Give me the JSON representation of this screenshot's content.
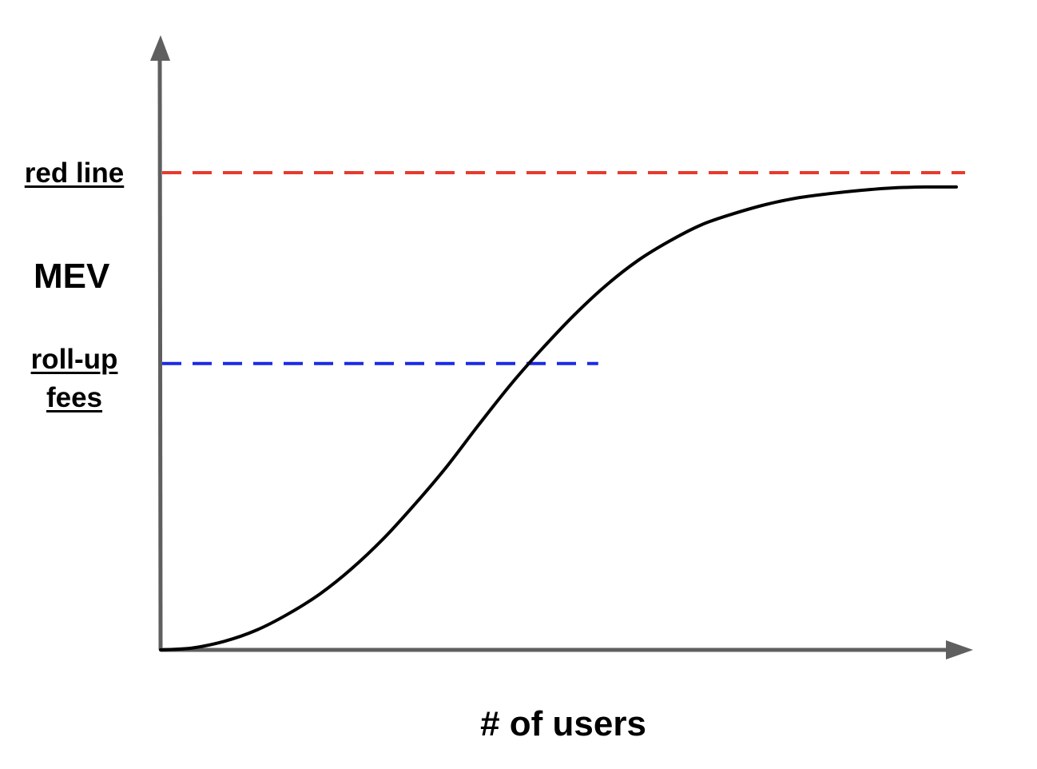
{
  "chart_data": {
    "type": "line",
    "xlabel": "# of users",
    "ylabel": "MEV",
    "xlim": [
      0,
      1
    ],
    "ylim": [
      0,
      1
    ],
    "grid": false,
    "series": [
      {
        "color": "#000000",
        "x": [
          0.0,
          0.04,
          0.08,
          0.12,
          0.16,
          0.2,
          0.24,
          0.28,
          0.32,
          0.36,
          0.4,
          0.44,
          0.48,
          0.52,
          0.56,
          0.6,
          0.64,
          0.68,
          0.72,
          0.76,
          0.8,
          0.84,
          0.88,
          0.92,
          0.96,
          1.0
        ],
        "values": [
          0.0,
          0.004,
          0.018,
          0.041,
          0.075,
          0.117,
          0.17,
          0.233,
          0.306,
          0.385,
          0.472,
          0.556,
          0.632,
          0.702,
          0.764,
          0.816,
          0.857,
          0.891,
          0.914,
          0.933,
          0.947,
          0.956,
          0.963,
          0.968,
          0.97,
          0.97
        ]
      }
    ],
    "reference_lines": [
      {
        "label": "red line",
        "y": 1.0,
        "style": "dashed",
        "color": "#e63b2e",
        "x_end": 1.0
      },
      {
        "label_lines": [
          "roll-up",
          "fees"
        ],
        "y": 0.6,
        "style": "dashed",
        "color": "#1a2ae6",
        "x_end": 0.55
      }
    ]
  },
  "colors": {
    "axis": "#5f5f5f",
    "curve": "#000000",
    "red_line": "#e63b2e",
    "rollup": "#1a2ae6"
  }
}
